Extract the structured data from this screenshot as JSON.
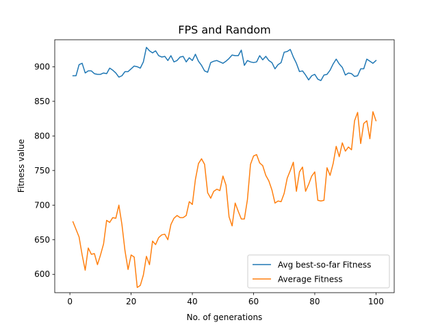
{
  "chart_data": {
    "type": "line",
    "title": "FPS and Random",
    "xlabel": "No. of generations",
    "ylabel": "Fitness value",
    "xlim": [
      -4.95,
      105.95
    ],
    "ylim": [
      573.5,
      939.0
    ],
    "xticks": [
      0,
      20,
      40,
      60,
      80,
      100
    ],
    "yticks": [
      600,
      650,
      700,
      750,
      800,
      850,
      900
    ],
    "legend_position": "lower-right",
    "x": [
      1,
      2,
      3,
      4,
      5,
      6,
      7,
      8,
      9,
      10,
      11,
      12,
      13,
      14,
      15,
      16,
      17,
      18,
      19,
      20,
      21,
      22,
      23,
      24,
      25,
      26,
      27,
      28,
      29,
      30,
      31,
      32,
      33,
      34,
      35,
      36,
      37,
      38,
      39,
      40,
      41,
      42,
      43,
      44,
      45,
      46,
      47,
      48,
      49,
      50,
      51,
      52,
      53,
      54,
      55,
      56,
      57,
      58,
      59,
      60,
      61,
      62,
      63,
      64,
      65,
      66,
      67,
      68,
      69,
      70,
      71,
      72,
      73,
      74,
      75,
      76,
      77,
      78,
      79,
      80,
      81,
      82,
      83,
      84,
      85,
      86,
      87,
      88,
      89,
      90,
      91,
      92,
      93,
      94,
      95,
      96,
      97,
      98,
      99,
      100
    ],
    "series": [
      {
        "name": "Avg best-so-far Fitness",
        "color": "#1f77b4",
        "values": [
          887,
          887,
          903,
          905,
          891,
          894,
          894,
          890,
          889,
          889,
          891,
          890,
          898,
          895,
          891,
          885,
          887,
          893,
          893,
          897,
          901,
          900,
          898,
          907,
          928,
          923,
          920,
          923,
          916,
          914,
          915,
          909,
          916,
          907,
          909,
          914,
          915,
          907,
          913,
          909,
          918,
          908,
          902,
          894,
          892,
          906,
          908,
          909,
          907,
          905,
          908,
          912,
          917,
          916,
          916,
          924,
          902,
          909,
          907,
          906,
          907,
          916,
          910,
          915,
          909,
          906,
          897,
          903,
          906,
          921,
          922,
          925,
          914,
          905,
          893,
          894,
          888,
          881,
          887,
          889,
          882,
          880,
          888,
          889,
          895,
          904,
          911,
          904,
          899,
          888,
          891,
          890,
          886,
          887,
          897,
          897,
          911,
          908,
          905,
          909
        ]
      },
      {
        "name": "Average Fitness",
        "color": "#ff7f0e",
        "values": [
          676,
          665,
          654,
          628,
          606,
          638,
          629,
          630,
          614,
          628,
          644,
          678,
          675,
          682,
          681,
          700,
          672,
          634,
          607,
          628,
          625,
          581,
          584,
          599,
          626,
          614,
          648,
          643,
          653,
          657,
          658,
          650,
          672,
          681,
          685,
          682,
          682,
          685,
          705,
          701,
          737,
          760,
          767,
          759,
          718,
          710,
          720,
          723,
          721,
          742,
          729,
          683,
          670,
          703,
          691,
          680,
          680,
          708,
          759,
          771,
          773,
          761,
          757,
          743,
          735,
          722,
          703,
          706,
          705,
          717,
          739,
          750,
          762,
          720,
          748,
          755,
          720,
          730,
          742,
          748,
          707,
          706,
          707,
          754,
          743,
          760,
          785,
          770,
          790,
          778,
          784,
          780,
          822,
          834,
          789,
          818,
          822,
          796,
          835,
          822
        ]
      }
    ]
  }
}
